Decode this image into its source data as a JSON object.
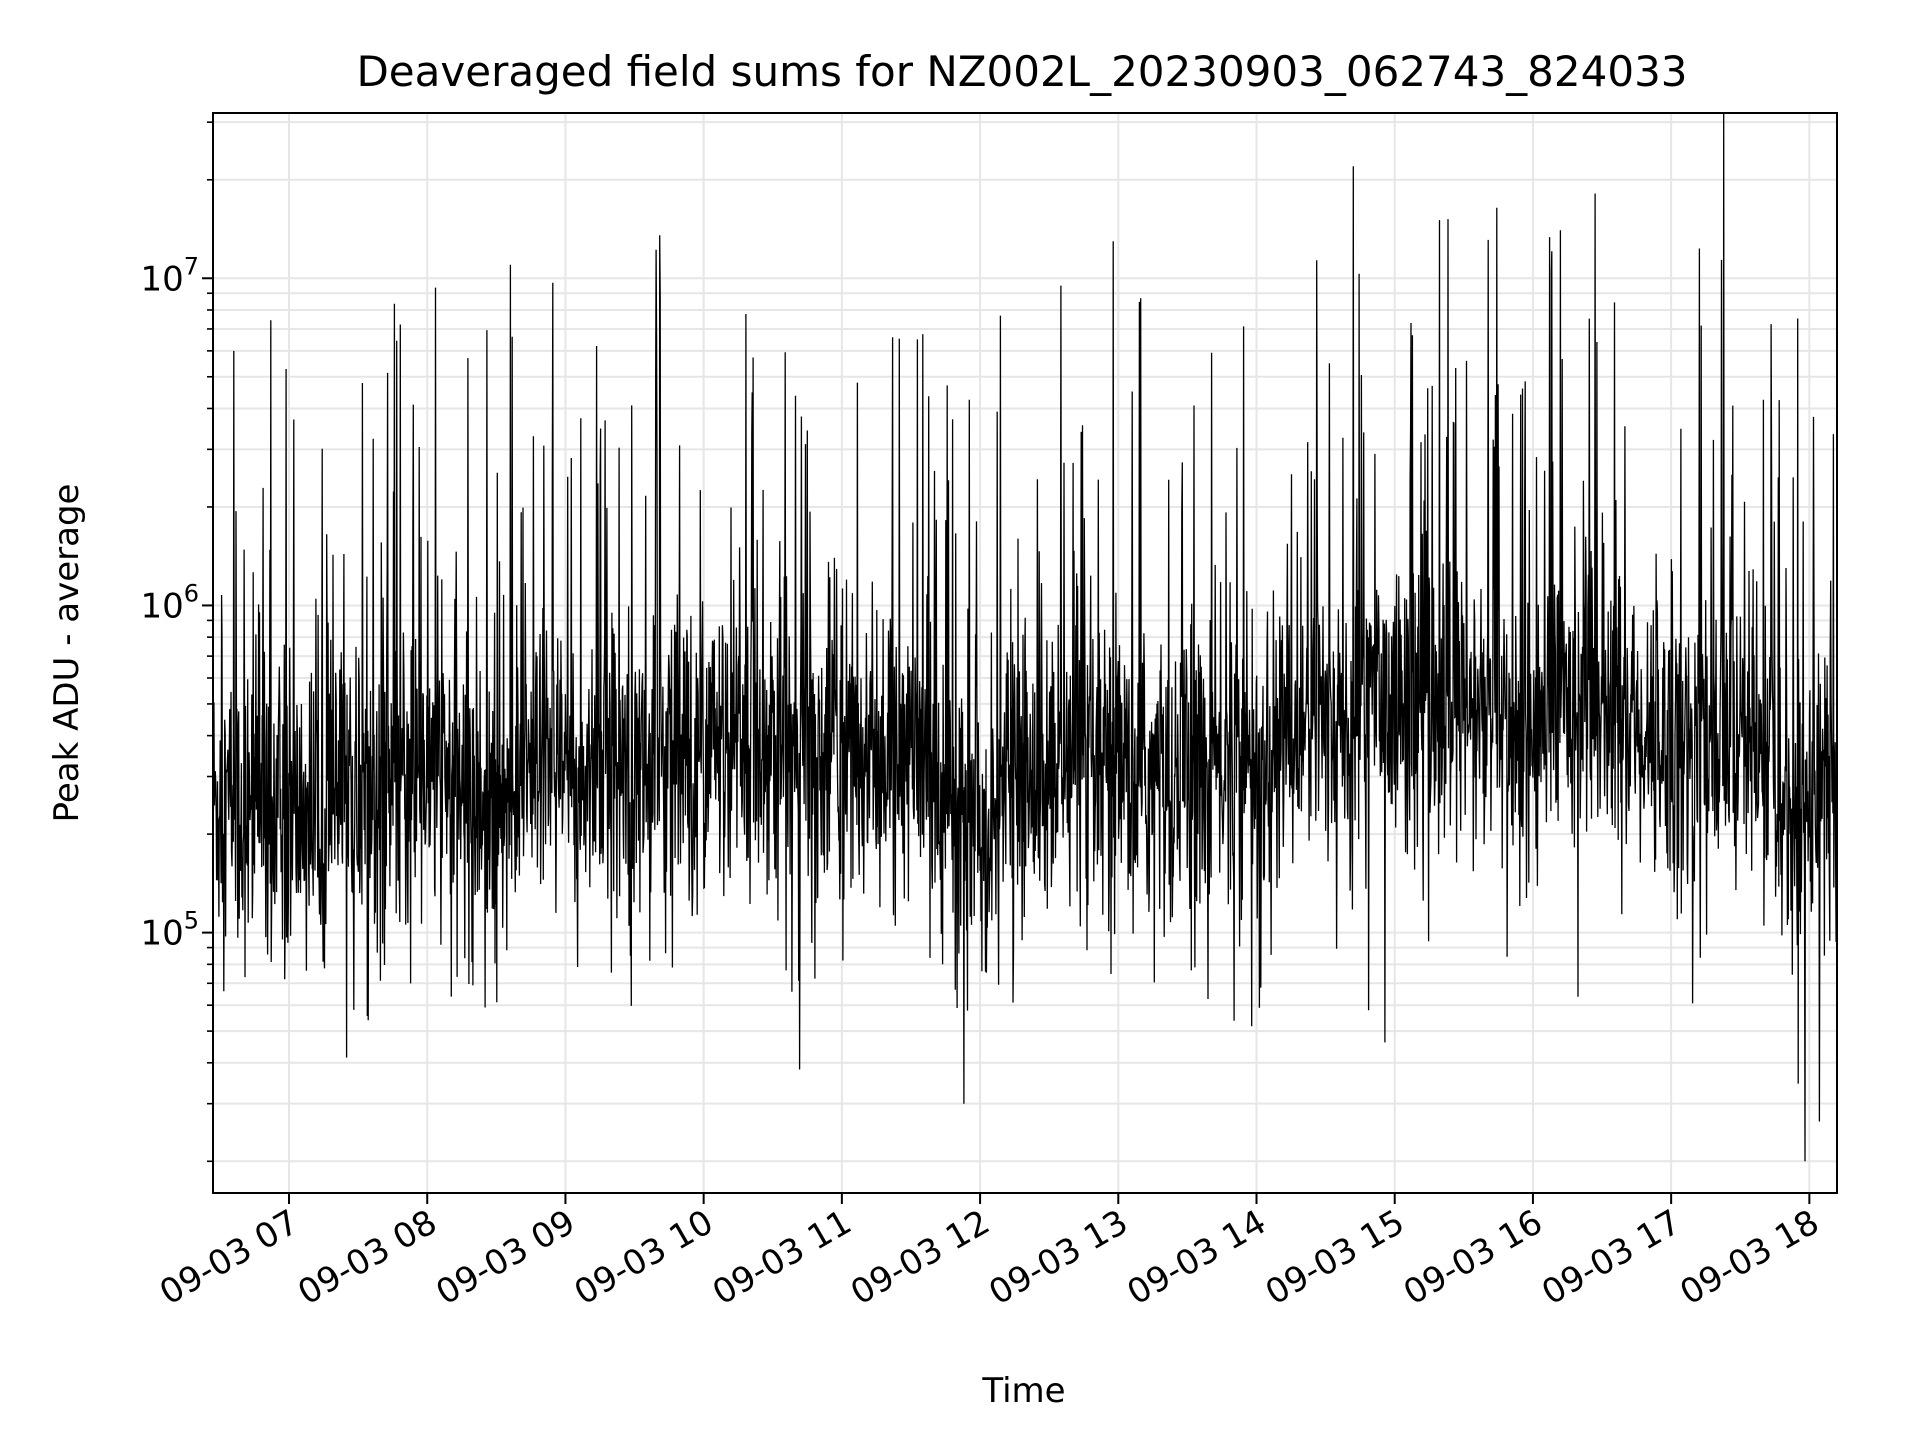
{
  "chart_data": {
    "type": "line",
    "title": "Deaveraged field sums for NZ002L_20230903_062743_824033",
    "xlabel": "Time",
    "ylabel": "Peak ADU - average",
    "yscale": "log",
    "grid": true,
    "legend": "none",
    "line_color": "#000000",
    "xlim": [
      "2023-09-03 06:27",
      "2023-09-03 18:12"
    ],
    "ylim": [
      16000,
      32000000
    ],
    "x_ticks": [
      {
        "value": "2023-09-03 07:00",
        "label": "09-03 07"
      },
      {
        "value": "2023-09-03 08:00",
        "label": "09-03 08"
      },
      {
        "value": "2023-09-03 09:00",
        "label": "09-03 09"
      },
      {
        "value": "2023-09-03 10:00",
        "label": "09-03 10"
      },
      {
        "value": "2023-09-03 11:00",
        "label": "09-03 11"
      },
      {
        "value": "2023-09-03 12:00",
        "label": "09-03 12"
      },
      {
        "value": "2023-09-03 13:00",
        "label": "09-03 13"
      },
      {
        "value": "2023-09-03 14:00",
        "label": "09-03 14"
      },
      {
        "value": "2023-09-03 15:00",
        "label": "09-03 15"
      },
      {
        "value": "2023-09-03 16:00",
        "label": "09-03 16"
      },
      {
        "value": "2023-09-03 17:00",
        "label": "09-03 17"
      },
      {
        "value": "2023-09-03 18:00",
        "label": "09-03 18"
      }
    ],
    "y_ticks": [
      {
        "value": 100000,
        "base": "10",
        "exp": "5"
      },
      {
        "value": 1000000,
        "base": "10",
        "exp": "6"
      },
      {
        "value": 10000000,
        "base": "10",
        "exp": "7"
      }
    ],
    "series": [
      {
        "x": [
          "2023-09-03 06:27",
          "2023-09-03 06:33",
          "2023-09-03 06:36",
          "2023-09-03 06:40",
          "2023-09-03 06:46",
          "2023-09-03 06:56",
          "2023-09-03 07:02",
          "2023-09-03 07:15",
          "2023-09-03 07:26",
          "2023-09-03 07:39",
          "2023-09-03 07:52",
          "2023-09-03 08:05",
          "2023-09-03 08:17",
          "2023-09-03 08:25",
          "2023-09-03 08:36",
          "2023-09-03 08:53",
          "2023-09-03 09:10",
          "2023-09-03 09:20",
          "2023-09-03 09:30",
          "2023-09-03 09:48",
          "2023-09-03 10:00",
          "2023-09-03 10:16",
          "2023-09-03 10:30",
          "2023-09-03 10:48",
          "2023-09-03 11:05",
          "2023-09-03 11:30",
          "2023-09-03 11:38",
          "2023-09-03 11:45",
          "2023-09-03 11:53",
          "2023-09-03 12:10",
          "2023-09-03 12:35",
          "2023-09-03 12:53",
          "2023-09-03 13:10",
          "2023-09-03 13:30",
          "2023-09-03 13:40",
          "2023-09-03 14:10",
          "2023-09-03 14:22",
          "2023-09-03 14:38",
          "2023-09-03 14:42",
          "2023-09-03 14:53",
          "2023-09-03 15:18",
          "2023-09-03 15:30",
          "2023-09-03 15:45",
          "2023-09-03 16:00",
          "2023-09-03 16:08",
          "2023-09-03 16:20",
          "2023-09-03 16:38",
          "2023-09-03 16:52",
          "2023-09-03 17:12",
          "2023-09-03 17:27",
          "2023-09-03 17:35",
          "2023-09-03 17:45",
          "2023-09-03 17:58",
          "2023-09-03 18:05",
          "2023-09-03 18:12"
        ],
        "y": [
          280000,
          250000,
          6000000,
          230000,
          280000,
          250000,
          230000,
          270000,
          250000,
          270000,
          300000,
          330000,
          280000,
          250000,
          11000000,
          300000,
          330000,
          370000,
          330000,
          350000,
          380000,
          380000,
          380000,
          350000,
          380000,
          350000,
          330000,
          280000,
          30000,
          300000,
          9500000,
          290000,
          310000,
          300000,
          330000,
          420000,
          560000,
          450000,
          22000000,
          560000,
          480000,
          470000,
          460000,
          420000,
          10500000,
          520000,
          480000,
          440000,
          390000,
          410000,
          380000,
          350000,
          20000,
          310000,
          330000
        ]
      }
    ]
  }
}
